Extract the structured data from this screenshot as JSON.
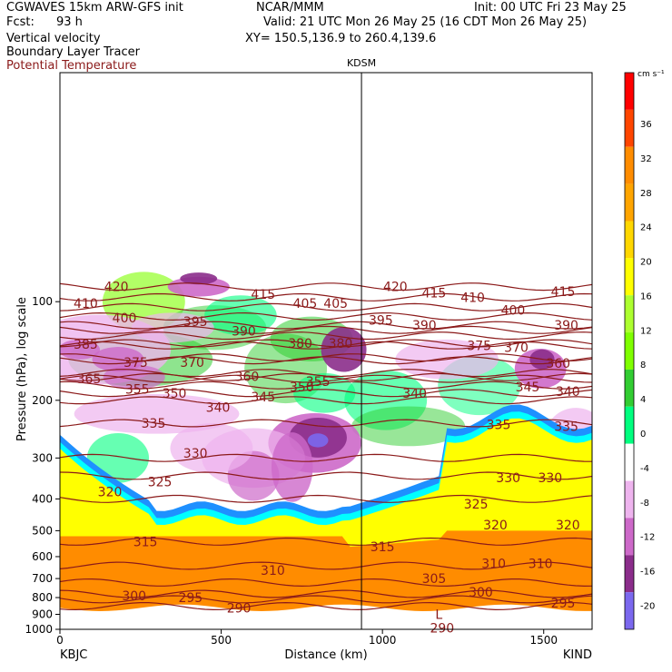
{
  "header": {
    "model": "CGWAVES 15km ARW-GFS init",
    "fcst_label": "Fcst:",
    "fcst_value": "93 h",
    "org": "NCAR/MMM",
    "init": "Init: 00 UTC Fri 23 May 25",
    "valid": "Valid: 21 UTC Mon 26 May 25 (16 CDT Mon 26 May 25)",
    "xy": "XY= 150.5,136.9 to 260.4,139.6",
    "fields": [
      "Vertical velocity",
      "Boundary Layer Tracer",
      "Potential Temperature"
    ],
    "field_colors": [
      "#000000",
      "#000000",
      "#8b1a1a"
    ]
  },
  "chart_data": {
    "type": "heatmap",
    "title": "",
    "xlabel": "Distance (km)",
    "ylabel": "Pressure (hPa), log scale",
    "xlim": [
      0,
      1650
    ],
    "ylim": [
      1000,
      20
    ],
    "x_ticks": [
      0,
      500,
      1000,
      1500
    ],
    "y_ticks": [
      100,
      200,
      300,
      400,
      500,
      600,
      700,
      800,
      900,
      1000
    ],
    "left_station": "KBJC",
    "right_station": "KIND",
    "marker_label": "KDSM",
    "marker_x_km": 935,
    "colorbar": {
      "unit": "cm s⁻¹",
      "ticks": [
        36,
        32,
        28,
        24,
        20,
        16,
        12,
        8,
        4,
        0,
        -4,
        -8,
        -12,
        -16,
        -20
      ],
      "colors": [
        "#ff0000",
        "#ff4500",
        "#ff8c00",
        "#ffa500",
        "#ffd700",
        "#ffff00",
        "#adff2f",
        "#7fff00",
        "#32cd32",
        "#00ff7f",
        "#ffffff",
        "#eeb4ee",
        "#cd69c9",
        "#8b2d8b",
        "#7b68ee"
      ]
    },
    "theta_contours": [
      {
        "theta": 420,
        "p": 90
      },
      {
        "theta": 415,
        "p": 97
      },
      {
        "theta": 410,
        "p": 104
      },
      {
        "theta": 405,
        "p": 111
      },
      {
        "theta": 400,
        "p": 118
      },
      {
        "theta": 395,
        "p": 122
      },
      {
        "theta": 390,
        "p": 127
      },
      {
        "theta": 385,
        "p": 134
      },
      {
        "theta": 380,
        "p": 136
      },
      {
        "theta": 375,
        "p": 148
      },
      {
        "theta": 370,
        "p": 151
      },
      {
        "theta": 365,
        "p": 170
      },
      {
        "theta": 360,
        "p": 165
      },
      {
        "theta": 355,
        "p": 172
      },
      {
        "theta": 350,
        "p": 180
      },
      {
        "theta": 345,
        "p": 190
      },
      {
        "theta": 340,
        "p": 200
      },
      {
        "theta": 335,
        "p": 235
      },
      {
        "theta": 330,
        "p": 300
      },
      {
        "theta": 325,
        "p": 340
      },
      {
        "theta": 320,
        "p": 400
      },
      {
        "theta": 315,
        "p": 540
      },
      {
        "theta": 310,
        "p": 640
      },
      {
        "theta": 305,
        "p": 720
      },
      {
        "theta": 300,
        "p": 780
      },
      {
        "theta": 295,
        "p": 810
      },
      {
        "theta": 290,
        "p": 850
      }
    ],
    "contour_labels": [
      {
        "text": "420",
        "x": 175,
        "p": 90
      },
      {
        "text": "415",
        "x": 630,
        "p": 95
      },
      {
        "text": "405",
        "x": 760,
        "p": 101
      },
      {
        "text": "405",
        "x": 855,
        "p": 101
      },
      {
        "text": "420",
        "x": 1040,
        "p": 90
      },
      {
        "text": "415",
        "x": 1160,
        "p": 94
      },
      {
        "text": "410",
        "x": 1280,
        "p": 97
      },
      {
        "text": "415",
        "x": 1560,
        "p": 93
      },
      {
        "text": "410",
        "x": 80,
        "p": 101
      },
      {
        "text": "400",
        "x": 200,
        "p": 112
      },
      {
        "text": "395",
        "x": 420,
        "p": 115
      },
      {
        "text": "390",
        "x": 570,
        "p": 123
      },
      {
        "text": "380",
        "x": 745,
        "p": 134
      },
      {
        "text": "380",
        "x": 870,
        "p": 134
      },
      {
        "text": "395",
        "x": 995,
        "p": 114
      },
      {
        "text": "390",
        "x": 1130,
        "p": 118
      },
      {
        "text": "400",
        "x": 1405,
        "p": 106
      },
      {
        "text": "390",
        "x": 1570,
        "p": 118
      },
      {
        "text": "385",
        "x": 80,
        "p": 135
      },
      {
        "text": "375",
        "x": 1300,
        "p": 136
      },
      {
        "text": "370",
        "x": 1415,
        "p": 138
      },
      {
        "text": "360",
        "x": 1545,
        "p": 154
      },
      {
        "text": "375",
        "x": 235,
        "p": 153
      },
      {
        "text": "370",
        "x": 410,
        "p": 153
      },
      {
        "text": "360",
        "x": 580,
        "p": 169
      },
      {
        "text": "355",
        "x": 800,
        "p": 175
      },
      {
        "text": "365",
        "x": 90,
        "p": 172
      },
      {
        "text": "355",
        "x": 240,
        "p": 185
      },
      {
        "text": "350",
        "x": 355,
        "p": 190
      },
      {
        "text": "345",
        "x": 630,
        "p": 195
      },
      {
        "text": "350",
        "x": 750,
        "p": 182
      },
      {
        "text": "340",
        "x": 1100,
        "p": 190
      },
      {
        "text": "345",
        "x": 1450,
        "p": 182
      },
      {
        "text": "340",
        "x": 1575,
        "p": 188
      },
      {
        "text": "340",
        "x": 490,
        "p": 210
      },
      {
        "text": "335",
        "x": 290,
        "p": 235
      },
      {
        "text": "335",
        "x": 1360,
        "p": 237
      },
      {
        "text": "335",
        "x": 1570,
        "p": 240
      },
      {
        "text": "330",
        "x": 420,
        "p": 290
      },
      {
        "text": "330",
        "x": 1390,
        "p": 345
      },
      {
        "text": "330",
        "x": 1520,
        "p": 345
      },
      {
        "text": "325",
        "x": 310,
        "p": 355
      },
      {
        "text": "325",
        "x": 1290,
        "p": 415
      },
      {
        "text": "320",
        "x": 155,
        "p": 380
      },
      {
        "text": "320",
        "x": 1350,
        "p": 480
      },
      {
        "text": "320",
        "x": 1575,
        "p": 480
      },
      {
        "text": "315",
        "x": 265,
        "p": 540
      },
      {
        "text": "315",
        "x": 1000,
        "p": 560
      },
      {
        "text": "310",
        "x": 660,
        "p": 660
      },
      {
        "text": "310",
        "x": 1345,
        "p": 630
      },
      {
        "text": "310",
        "x": 1490,
        "p": 630
      },
      {
        "text": "305",
        "x": 1160,
        "p": 700
      },
      {
        "text": "300",
        "x": 230,
        "p": 790
      },
      {
        "text": "295",
        "x": 405,
        "p": 800
      },
      {
        "text": "290",
        "x": 555,
        "p": 860
      },
      {
        "text": "300",
        "x": 1305,
        "p": 770
      },
      {
        "text": "295",
        "x": 1560,
        "p": 830
      },
      {
        "text": "L",
        "x": 1175,
        "p": 900
      },
      {
        "text": "290",
        "x": 1185,
        "p": 990
      }
    ]
  }
}
